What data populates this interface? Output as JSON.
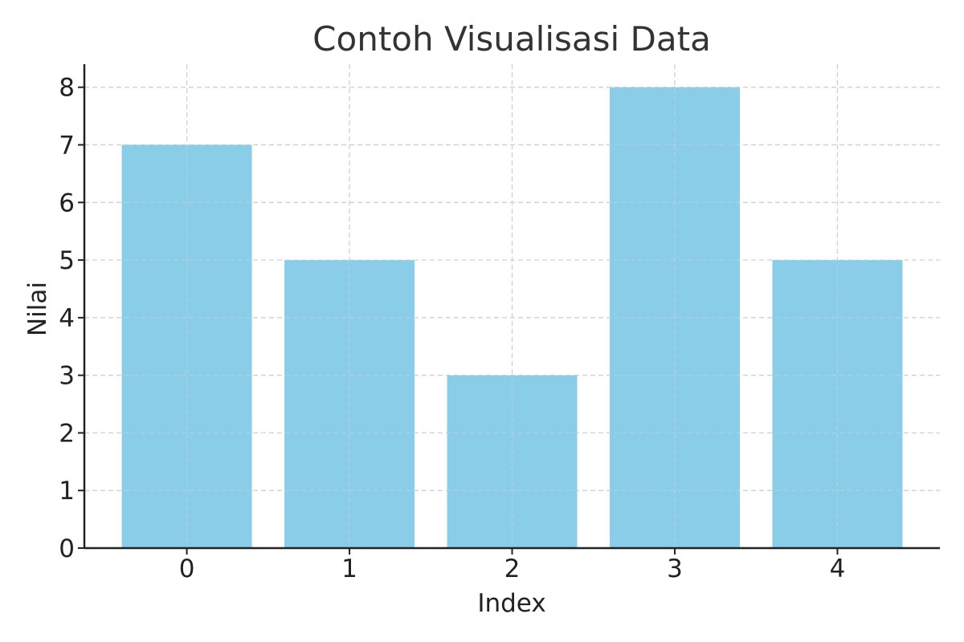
{
  "chart_data": {
    "type": "bar",
    "title": "Contoh Visualisasi Data",
    "xlabel": "Index",
    "ylabel": "Nilai",
    "categories": [
      "0",
      "1",
      "2",
      "3",
      "4"
    ],
    "values": [
      7,
      5,
      3,
      8,
      5
    ],
    "yticks": [
      "0",
      "1",
      "2",
      "3",
      "4",
      "5",
      "6",
      "7",
      "8"
    ],
    "ylim": [
      0,
      8.4
    ],
    "grid": true,
    "bar_color": "#89CDE9"
  }
}
